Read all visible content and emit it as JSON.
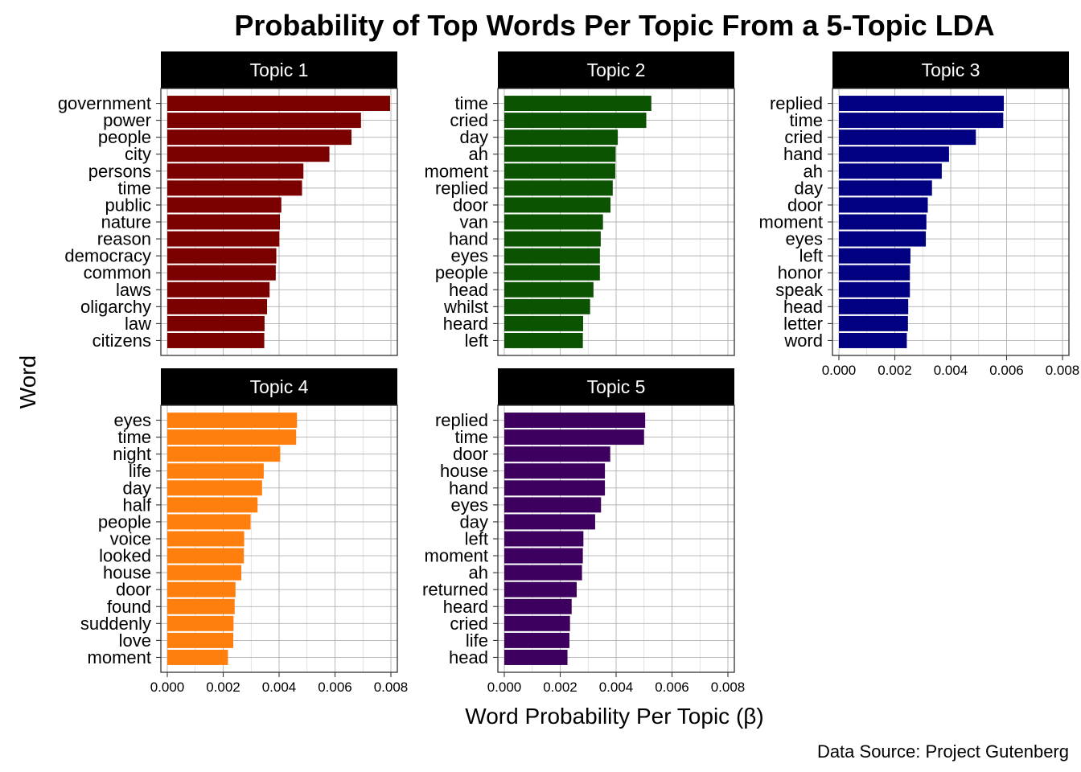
{
  "chart_data": {
    "type": "bar",
    "orientation": "horizontal",
    "title": "Probability of Top Words Per Topic From a 5-Topic LDA",
    "xlabel": "Word Probability Per Topic (β)",
    "ylabel": "Word",
    "caption": "Data Source: Project Gutenberg",
    "xlim": [
      0,
      0.008
    ],
    "x_ticks": [
      "0.000",
      "0.002",
      "0.004",
      "0.006",
      "0.008"
    ],
    "grid": true,
    "legend": "none",
    "panels": [
      {
        "name": "Topic 1",
        "color": "#7B0000",
        "words": [
          "government",
          "power",
          "people",
          "city",
          "persons",
          "time",
          "public",
          "nature",
          "reason",
          "democracy",
          "common",
          "laws",
          "oligarchy",
          "law",
          "citizens"
        ],
        "values": [
          0.00797,
          0.00693,
          0.00659,
          0.0058,
          0.00487,
          0.00482,
          0.00408,
          0.00403,
          0.00401,
          0.0039,
          0.00388,
          0.00366,
          0.00357,
          0.00348,
          0.00347
        ]
      },
      {
        "name": "Topic 2",
        "color": "#0B5300",
        "words": [
          "time",
          "cried",
          "day",
          "ah",
          "moment",
          "replied",
          "door",
          "van",
          "hand",
          "eyes",
          "people",
          "head",
          "whilst",
          "heard",
          "left"
        ],
        "values": [
          0.00526,
          0.00508,
          0.00406,
          0.00398,
          0.00397,
          0.00388,
          0.0038,
          0.00353,
          0.00345,
          0.00342,
          0.00342,
          0.00319,
          0.00307,
          0.00282,
          0.00281
        ]
      },
      {
        "name": "Topic 3",
        "color": "#000080",
        "words": [
          "replied",
          "time",
          "cried",
          "hand",
          "ah",
          "day",
          "door",
          "moment",
          "eyes",
          "left",
          "honor",
          "speak",
          "head",
          "letter",
          "word"
        ],
        "values": [
          0.0059,
          0.00588,
          0.0049,
          0.00394,
          0.00368,
          0.00333,
          0.00318,
          0.00313,
          0.00311,
          0.00256,
          0.00254,
          0.00254,
          0.00248,
          0.00247,
          0.00243
        ]
      },
      {
        "name": "Topic 4",
        "color": "#FF7F0E",
        "words": [
          "eyes",
          "time",
          "night",
          "life",
          "day",
          "half",
          "people",
          "voice",
          "looked",
          "house",
          "door",
          "found",
          "suddenly",
          "love",
          "moment"
        ],
        "values": [
          0.00464,
          0.00461,
          0.00404,
          0.00345,
          0.00339,
          0.00323,
          0.00298,
          0.00275,
          0.00274,
          0.00265,
          0.00244,
          0.00241,
          0.00237,
          0.00236,
          0.00217
        ]
      },
      {
        "name": "Topic 5",
        "color": "#3D005F",
        "words": [
          "replied",
          "time",
          "door",
          "house",
          "hand",
          "eyes",
          "day",
          "left",
          "moment",
          "ah",
          "returned",
          "heard",
          "cried",
          "life",
          "head"
        ],
        "values": [
          0.00504,
          0.005,
          0.00379,
          0.0036,
          0.0036,
          0.00346,
          0.00325,
          0.00283,
          0.00281,
          0.00278,
          0.00259,
          0.00241,
          0.00235,
          0.00233,
          0.00226
        ]
      }
    ]
  }
}
